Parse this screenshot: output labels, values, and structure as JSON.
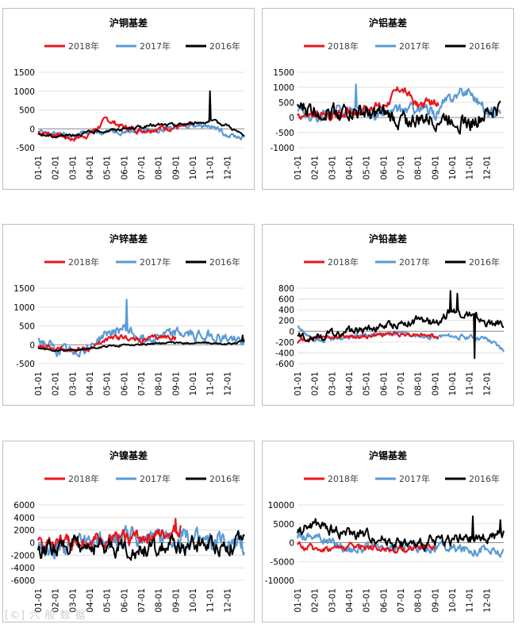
{
  "colors": {
    "s2018": "#e8161c",
    "s2017": "#5b9bd5",
    "s2016": "#000000",
    "grid": "#d9d9d9",
    "axis": "#8c8c8c",
    "text": "#404040"
  },
  "legend": [
    "2018年",
    "2017年",
    "2016年"
  ],
  "months": [
    "01-01",
    "02-01",
    "03-01",
    "04-01",
    "05-01",
    "06-01",
    "07-01",
    "08-01",
    "09-01",
    "10-01",
    "11-01",
    "12-01"
  ],
  "watermark": "[©] 六 般 数 据",
  "chart_data": [
    {
      "type": "line",
      "title": "沪铜基差",
      "ylim": [
        -500,
        1500
      ],
      "yticks": [
        -500,
        0,
        500,
        1000,
        1500
      ],
      "zero_tick_label": "0",
      "series": [
        {
          "name": "2018年",
          "end_month": 9.0,
          "base": [
            -80,
            -150,
            -260,
            -140,
            250,
            40,
            -40,
            20,
            40
          ],
          "noise": 60,
          "spikes": []
        },
        {
          "name": "2017年",
          "end_month": 12.0,
          "base": [
            -100,
            -140,
            -180,
            -80,
            -50,
            -60,
            -30,
            -40,
            60,
            120,
            100,
            -150,
            -240
          ],
          "noise": 55,
          "spikes": []
        },
        {
          "name": "2016年",
          "end_month": 12.0,
          "base": [
            -150,
            -200,
            -150,
            -100,
            -50,
            0,
            50,
            100,
            100,
            150,
            200,
            100,
            -200
          ],
          "noise": 35,
          "spikes": [
            [
              10.0,
              1000
            ]
          ]
        }
      ]
    },
    {
      "type": "line",
      "title": "沪铝基差",
      "ylim": [
        -1000,
        1500
      ],
      "yticks": [
        -1000,
        -500,
        0,
        500,
        1000,
        1500
      ],
      "zero_tick_label": "0",
      "series": [
        {
          "name": "2018年",
          "end_month": 8.2,
          "base": [
            100,
            50,
            50,
            200,
            300,
            400,
            1000,
            400,
            500
          ],
          "noise": 120,
          "spikes": []
        },
        {
          "name": "2017年",
          "end_month": 11.8,
          "base": [
            200,
            50,
            100,
            300,
            50,
            100,
            200,
            300,
            100,
            700,
            900,
            200,
            300
          ],
          "noise": 150,
          "spikes": [
            [
              3.4,
              1100
            ]
          ]
        },
        {
          "name": "2016年",
          "end_month": 11.8,
          "base": [
            300,
            250,
            200,
            200,
            100,
            50,
            -100,
            -100,
            -50,
            0,
            -200,
            100,
            400
          ],
          "noise": 220,
          "spikes": []
        }
      ]
    },
    {
      "type": "line",
      "title": "沪锌基差",
      "ylim": [
        -500,
        1500
      ],
      "yticks": [
        -500,
        0,
        500,
        1000,
        1500
      ],
      "zero_tick_label": "0",
      "series": [
        {
          "name": "2018年",
          "end_month": 8.0,
          "base": [
            -50,
            -100,
            -150,
            -100,
            150,
            200,
            100,
            200,
            200
          ],
          "noise": 55,
          "spikes": []
        },
        {
          "name": "2017年",
          "end_month": 12.0,
          "base": [
            150,
            -150,
            -200,
            -50,
            300,
            450,
            150,
            250,
            300,
            250,
            250,
            150,
            100
          ],
          "noise": 110,
          "spikes": [
            [
              5.15,
              1200
            ]
          ]
        },
        {
          "name": "2016年",
          "end_month": 12.0,
          "base": [
            -100,
            -150,
            -150,
            -100,
            -50,
            0,
            0,
            50,
            50,
            50,
            50,
            0,
            100
          ],
          "noise": 20,
          "spikes": [
            [
              11.9,
              250
            ]
          ]
        }
      ]
    },
    {
      "type": "line",
      "title": "沪铅基差",
      "ylim": [
        -600,
        800
      ],
      "yticks": [
        -600,
        -400,
        -200,
        0,
        200,
        400,
        600,
        800
      ],
      "zero_tick_label": "0",
      "series": [
        {
          "name": "2018年",
          "end_month": 8.2,
          "base": [
            -200,
            -100,
            -100,
            -100,
            -100,
            -50,
            -50,
            -50,
            -100
          ],
          "noise": 30,
          "spikes": []
        },
        {
          "name": "2017年",
          "end_month": 12.0,
          "base": [
            100,
            -200,
            -150,
            -100,
            -80,
            -50,
            -50,
            -100,
            -100,
            -100,
            -100,
            -150,
            -350
          ],
          "noise": 35,
          "spikes": []
        },
        {
          "name": "2016年",
          "end_month": 12.0,
          "base": [
            -100,
            -100,
            -50,
            0,
            50,
            100,
            150,
            200,
            150,
            400,
            300,
            150,
            150
          ],
          "noise": 60,
          "spikes": [
            [
              8.9,
              750
            ],
            [
              9.3,
              700
            ],
            [
              10.0,
              350
            ],
            [
              10.3,
              -500
            ]
          ]
        }
      ]
    },
    {
      "type": "line",
      "title": "沪镍基差",
      "ylim": [
        -6000,
        6000
      ],
      "yticks": [
        -6000,
        -4000,
        -2000,
        0,
        2000,
        4000,
        6000
      ],
      "zero_tick_label": "0",
      "series": [
        {
          "name": "2018年",
          "end_month": 8.3,
          "base": [
            -500,
            200,
            300,
            500,
            500,
            700,
            1000,
            1200,
            2000
          ],
          "noise": 900,
          "spikes": [
            [
              8.0,
              3800
            ]
          ]
        },
        {
          "name": "2017年",
          "end_month": 12.0,
          "base": [
            -500,
            -1000,
            -500,
            0,
            0,
            500,
            500,
            0,
            500,
            500,
            0,
            0,
            -500
          ],
          "noise": 1300,
          "spikes": []
        },
        {
          "name": "2016年",
          "end_month": 12.0,
          "base": [
            -1000,
            -1000,
            -500,
            -500,
            -500,
            -800,
            -1200,
            -1000,
            -800,
            -500,
            -200,
            -500,
            0
          ],
          "noise": 1100,
          "spikes": []
        }
      ]
    },
    {
      "type": "line",
      "title": "沪锡基差",
      "ylim": [
        -10000,
        10000
      ],
      "yticks": [
        -10000,
        -5000,
        0,
        5000,
        10000
      ],
      "zero_tick_label": "0",
      "series": [
        {
          "name": "2018年",
          "end_month": 8.0,
          "base": [
            -1000,
            -1500,
            -1500,
            -1000,
            -1000,
            -1500,
            -2000,
            -1000,
            -1000
          ],
          "noise": 700,
          "spikes": []
        },
        {
          "name": "2017年",
          "end_month": 12.0,
          "base": [
            2000,
            2000,
            0,
            -1500,
            -1500,
            -2000,
            -1500,
            -1500,
            -1000,
            -1500,
            -1500,
            -2000,
            -3000
          ],
          "noise": 1000,
          "spikes": []
        },
        {
          "name": "2016年",
          "end_month": 12.0,
          "base": [
            3000,
            5000,
            3500,
            2500,
            2000,
            1000,
            0,
            -1000,
            500,
            1000,
            500,
            1500,
            2000
          ],
          "noise": 1200,
          "spikes": [
            [
              10.2,
              7000
            ],
            [
              11.8,
              6000
            ]
          ]
        }
      ]
    }
  ]
}
